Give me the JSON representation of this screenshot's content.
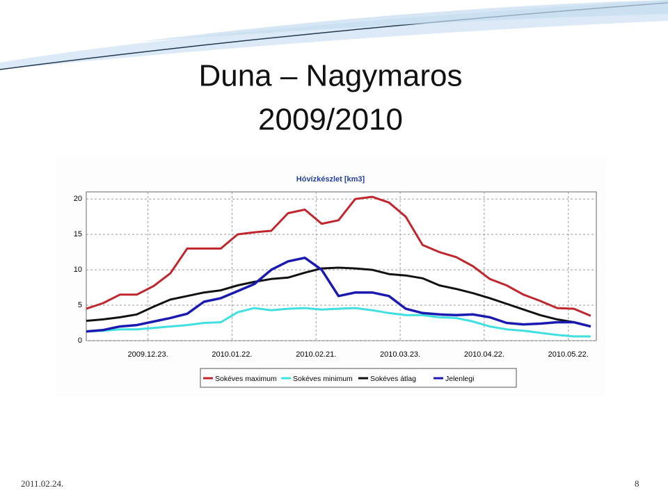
{
  "slide": {
    "title_lines": [
      "Duna – Nagymaros",
      "2009/2010"
    ],
    "date": "2011.02.24.",
    "page": "8"
  },
  "chart_data": {
    "type": "line",
    "title": "Hóvízkészlet [km3]",
    "x": [
      "2009.12.01.",
      "2009.12.07.",
      "2009.12.13.",
      "2009.12.19.",
      "2009.12.25.",
      "2009.12.31.",
      "2010.01.06.",
      "2010.01.12.",
      "2010.01.18.",
      "2010.01.24.",
      "2010.01.30.",
      "2010.02.05.",
      "2010.02.11.",
      "2010.02.17.",
      "2010.02.23.",
      "2010.03.01.",
      "2010.03.07.",
      "2010.03.13.",
      "2010.03.19.",
      "2010.03.25.",
      "2010.03.31.",
      "2010.04.06.",
      "2010.04.12.",
      "2010.04.18.",
      "2010.04.24.",
      "2010.04.30.",
      "2010.05.06.",
      "2010.05.12.",
      "2010.05.18.",
      "2010.05.24.",
      "2010.05.30."
    ],
    "series": [
      {
        "name": "Sokéves maximum",
        "color": "#c0262d",
        "values": [
          4.5,
          5.3,
          6.5,
          6.5,
          7.7,
          9.5,
          13.0,
          13.0,
          13.0,
          15.0,
          15.3,
          15.5,
          18.0,
          18.5,
          16.5,
          17.0,
          20.0,
          20.3,
          19.5,
          17.5,
          13.5,
          12.5,
          11.8,
          10.5,
          8.7,
          7.8,
          6.5,
          5.6,
          4.6,
          4.5,
          3.5
        ]
      },
      {
        "name": "Sokéves minimum",
        "color": "#40e0e0",
        "values": [
          1.3,
          1.4,
          1.6,
          1.6,
          1.8,
          2.0,
          2.2,
          2.5,
          2.6,
          4.0,
          4.6,
          4.3,
          4.5,
          4.6,
          4.4,
          4.5,
          4.6,
          4.3,
          3.9,
          3.6,
          3.6,
          3.3,
          3.2,
          2.7,
          2.0,
          1.6,
          1.4,
          1.1,
          0.8,
          0.6,
          0.6
        ]
      },
      {
        "name": "Sokéves átlag",
        "color": "#111111",
        "values": [
          2.8,
          3.0,
          3.3,
          3.7,
          4.8,
          5.8,
          6.3,
          6.8,
          7.1,
          7.8,
          8.3,
          8.7,
          8.9,
          9.6,
          10.2,
          10.3,
          10.2,
          10.0,
          9.4,
          9.2,
          8.8,
          7.8,
          7.3,
          6.7,
          6.0,
          5.2,
          4.4,
          3.6,
          3.0,
          2.6,
          2.0
        ]
      },
      {
        "name": "Jelenlegi",
        "color": "#1a1ab0",
        "values": [
          1.3,
          1.5,
          2.0,
          2.2,
          2.7,
          3.2,
          3.8,
          5.5,
          6.0,
          7.0,
          8.0,
          10.0,
          11.2,
          11.7,
          10.0,
          6.3,
          6.8,
          6.8,
          6.3,
          4.5,
          3.9,
          3.7,
          3.6,
          3.7,
          3.3,
          2.5,
          2.3,
          2.4,
          2.6,
          2.6,
          2.0
        ]
      }
    ],
    "xlim": [
      "2009.12.01.",
      "2010.06.01."
    ],
    "xticks": [
      "2009.12.23.",
      "2010.01.22.",
      "2010.02.21.",
      "2010.03.23.",
      "2010.04.22.",
      "2010.05.22."
    ],
    "ylim": [
      0,
      21
    ],
    "yticks": [
      0,
      5,
      10,
      15,
      20
    ],
    "grid": true,
    "legend": "bottom"
  }
}
